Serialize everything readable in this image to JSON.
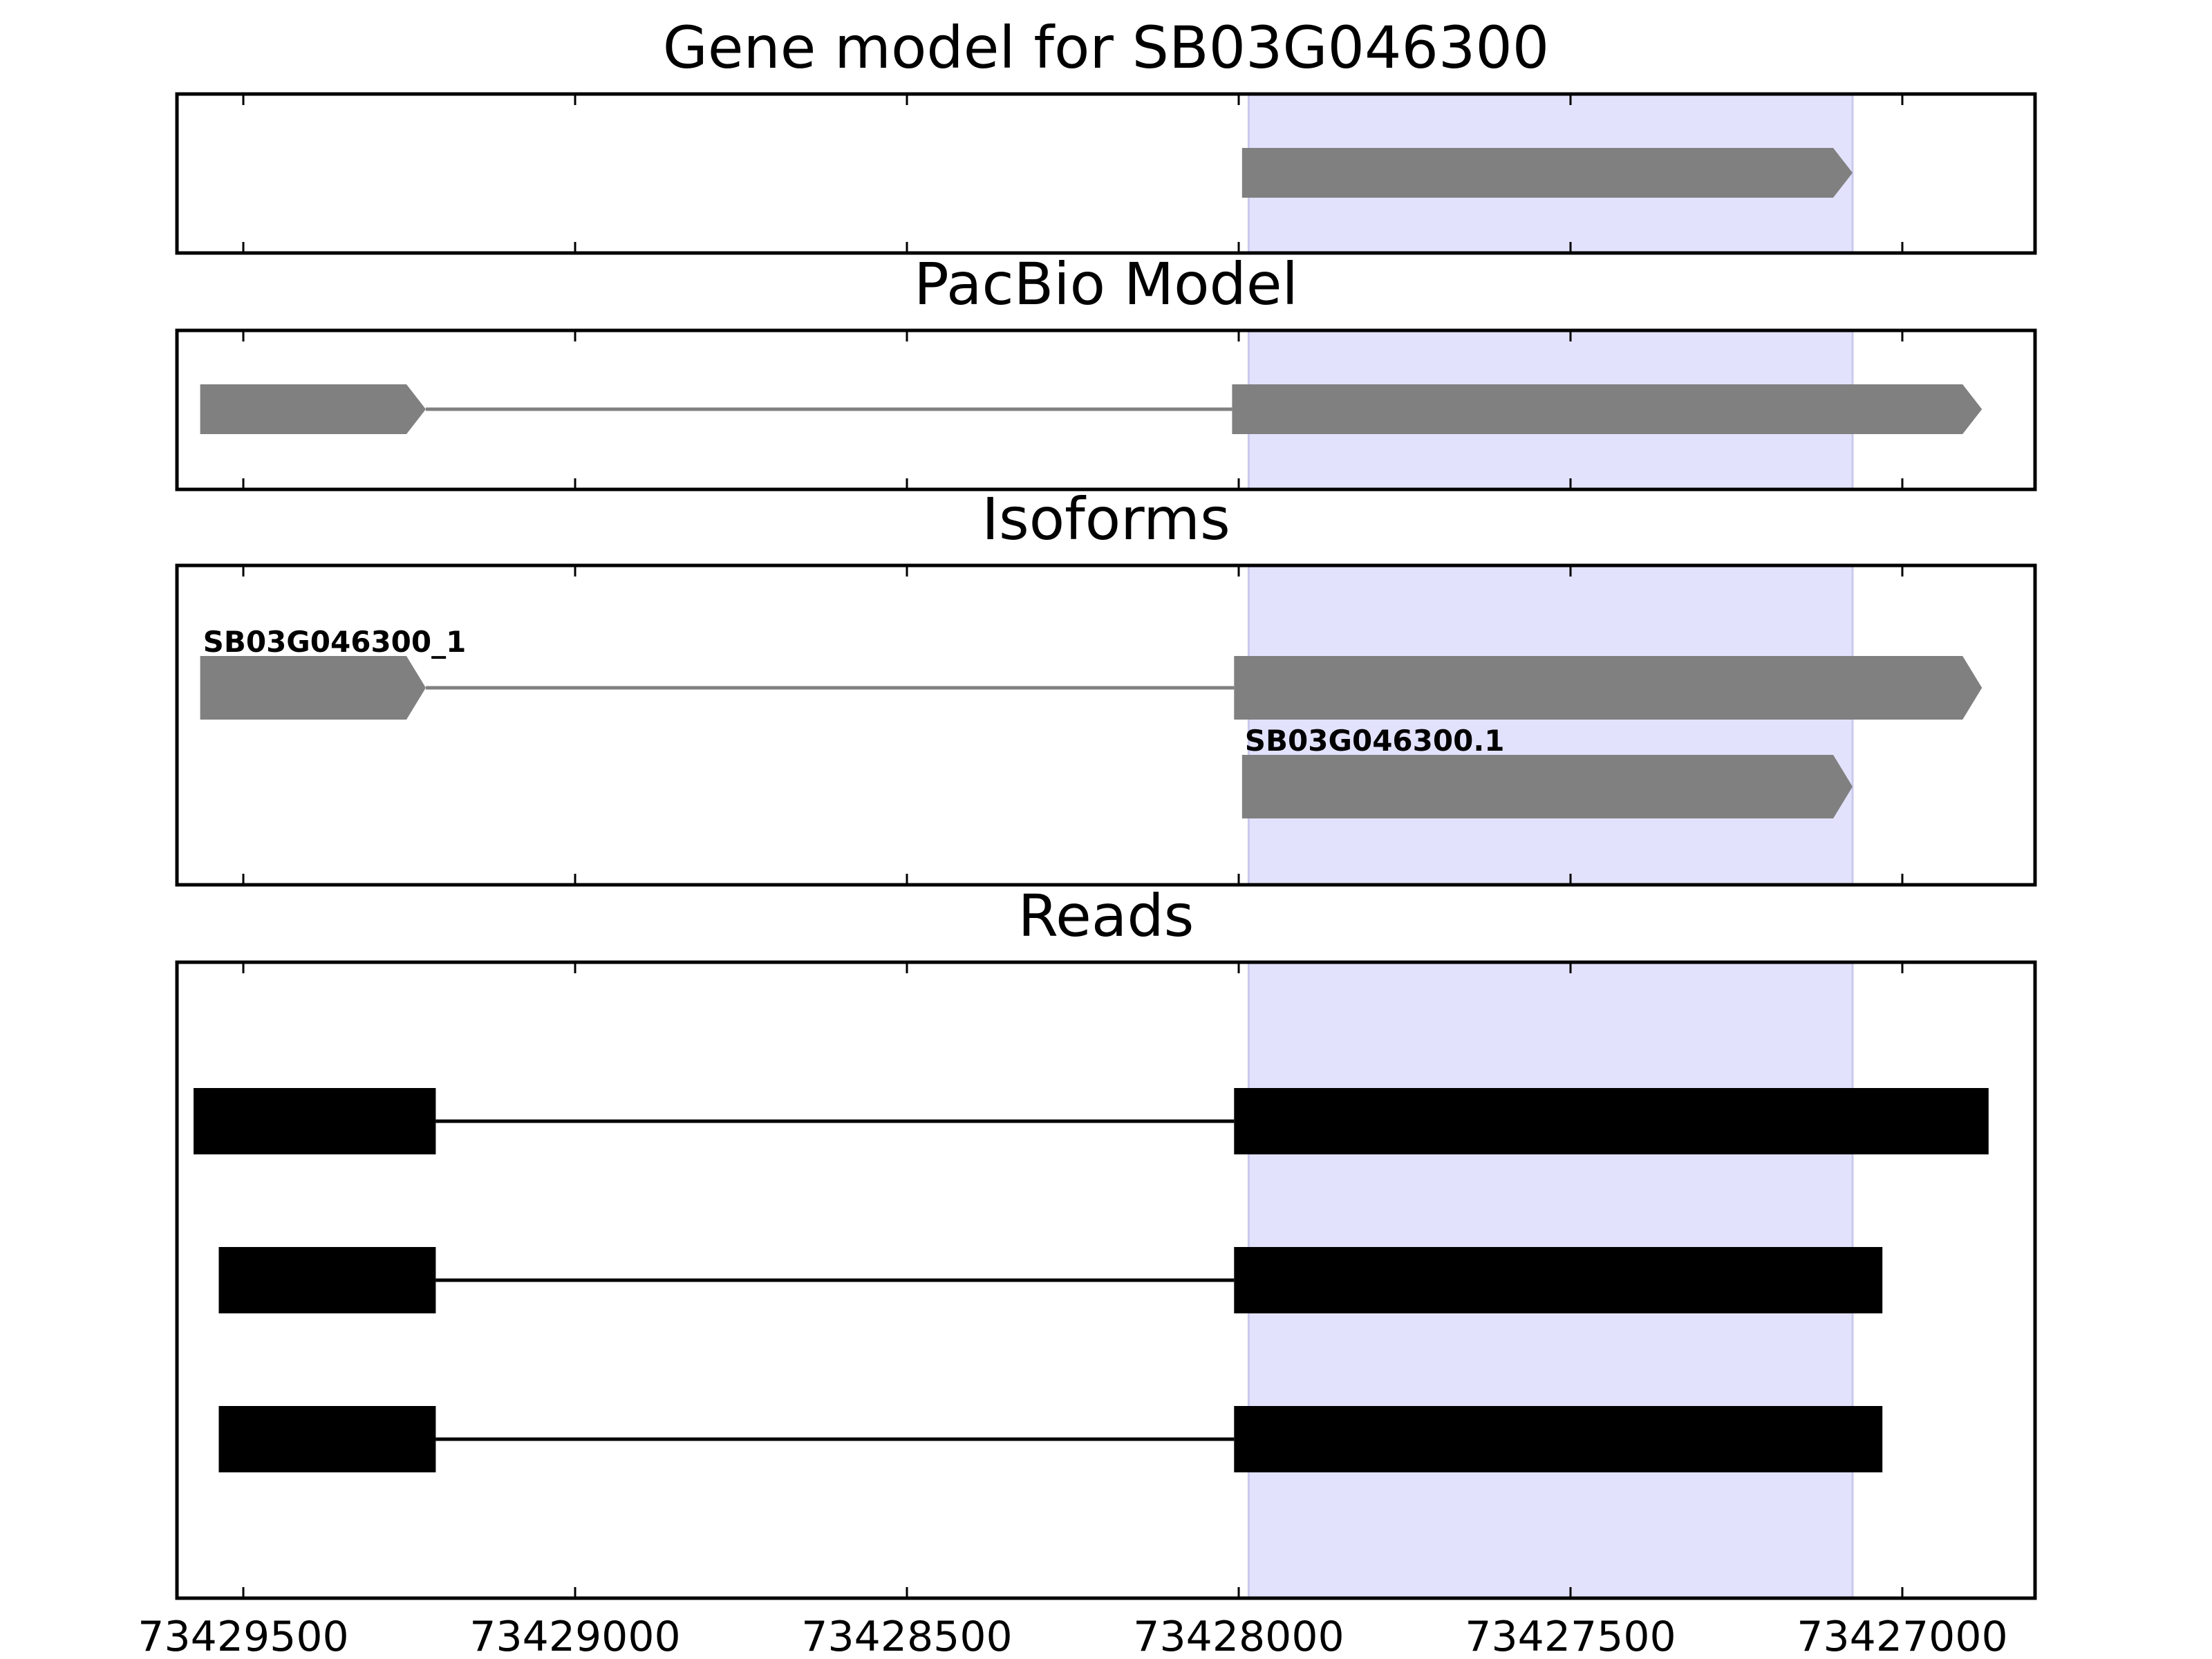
{
  "chart_data": {
    "type": "gene-structure",
    "x_axis": {
      "reversed": true,
      "range": [
        73429600,
        73426800
      ],
      "ticks": [
        73429500,
        73429000,
        73428500,
        73428000,
        73427500,
        73427000
      ],
      "tick_labels": [
        "73429500",
        "73429000",
        "73428500",
        "73428000",
        "73427500",
        "73427000"
      ]
    },
    "highlight_region": {
      "start": 73427985,
      "end": 73427075,
      "color": "#e2e2fc"
    },
    "panels": [
      {
        "title": "Gene model for SB03G046300",
        "color": "#808080",
        "tracks": [
          {
            "label": "",
            "exons": [
              [
                73427995,
                73427075
              ]
            ],
            "arrow": true
          }
        ]
      },
      {
        "title": "PacBio Model",
        "color": "#808080",
        "tracks": [
          {
            "label": "",
            "exons": [
              [
                73429565,
                73429225
              ],
              [
                73428010,
                73426880
              ]
            ],
            "arrow": true
          }
        ]
      },
      {
        "title": "Isoforms",
        "color": "#808080",
        "tracks": [
          {
            "label": "SB03G046300_1",
            "exons": [
              [
                73429565,
                73429225
              ],
              [
                73428007,
                73426880
              ]
            ],
            "arrow": true
          },
          {
            "label": "SB03G046300.1",
            "exons": [
              [
                73427995,
                73427075
              ]
            ],
            "arrow": true
          }
        ]
      },
      {
        "title": "Reads",
        "color": "#000000",
        "tracks": [
          {
            "label": "",
            "exons": [
              [
                73429575,
                73429210
              ],
              [
                73428007,
                73426870
              ]
            ],
            "arrow": false
          },
          {
            "label": "",
            "exons": [
              [
                73429537,
                73429210
              ],
              [
                73428007,
                73427030
              ]
            ],
            "arrow": false
          },
          {
            "label": "",
            "exons": [
              [
                73429537,
                73429210
              ],
              [
                73428007,
                73427030
              ]
            ],
            "arrow": false
          }
        ]
      }
    ]
  }
}
